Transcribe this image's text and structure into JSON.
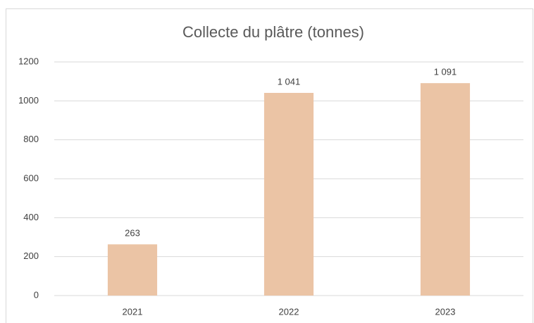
{
  "chart_data": {
    "type": "bar",
    "title": "Collecte du plâtre (tonnes)",
    "categories": [
      "2021",
      "2022",
      "2023"
    ],
    "values": [
      263,
      1041,
      1091
    ],
    "value_labels": [
      "263",
      "1 041",
      "1 091"
    ],
    "color": "#ebc4a5",
    "ylim": [
      0,
      1200
    ],
    "yticks": [
      0,
      200,
      400,
      600,
      800,
      1000,
      1200
    ],
    "grid": true
  }
}
